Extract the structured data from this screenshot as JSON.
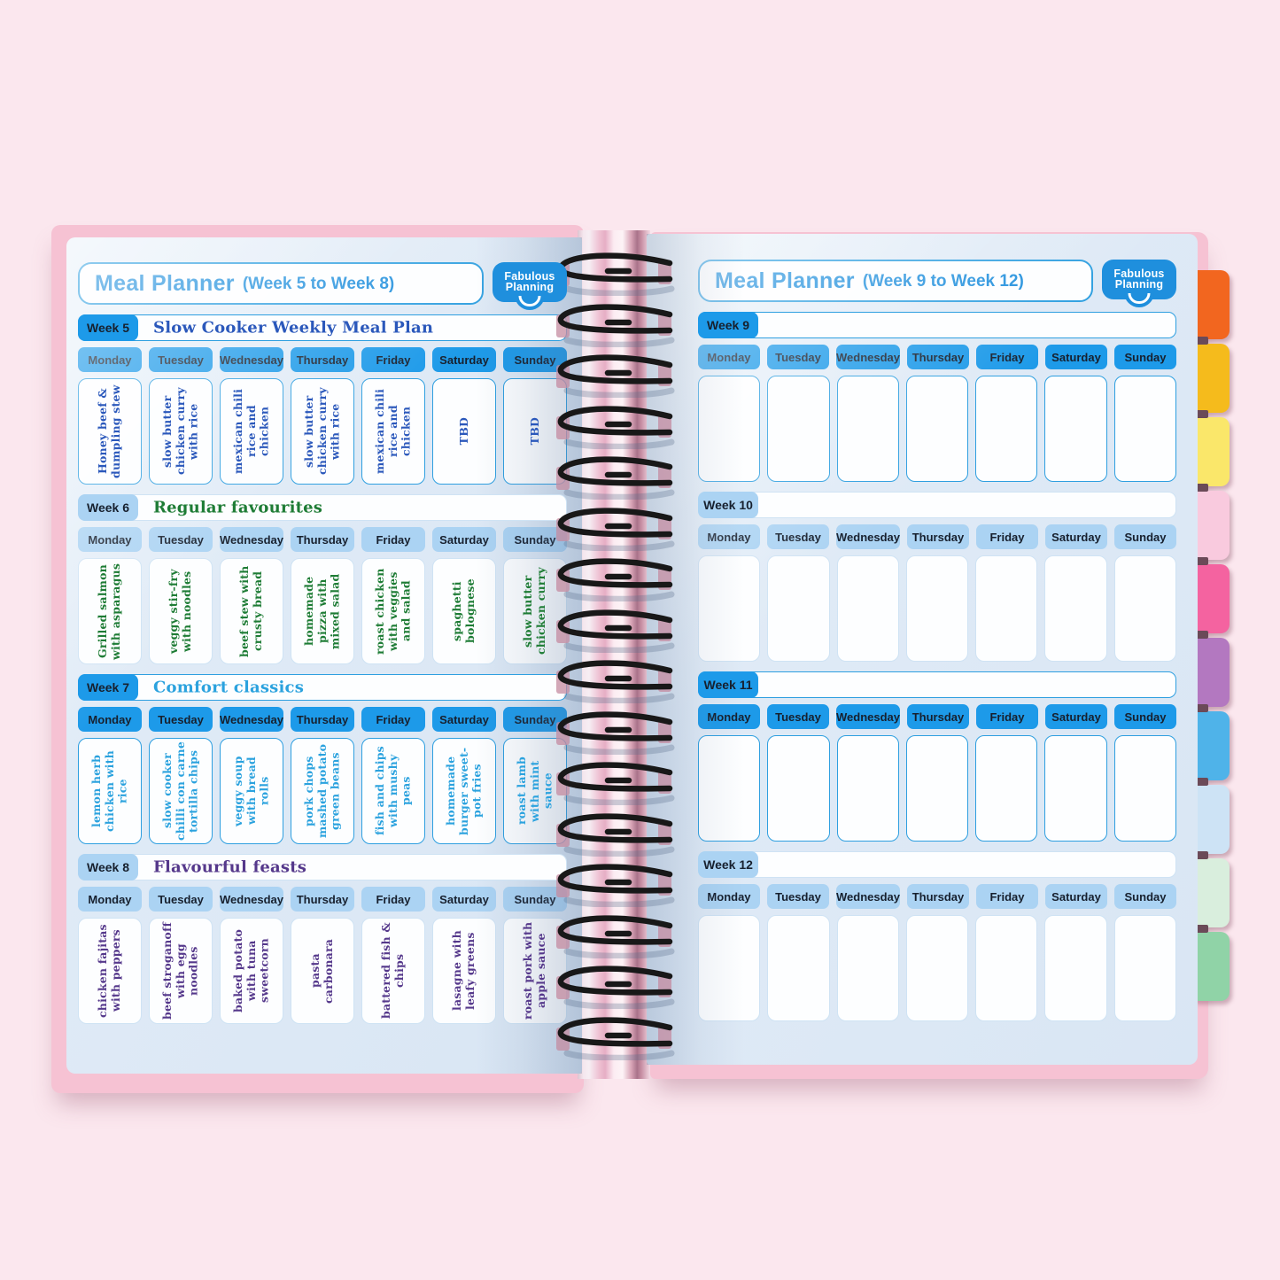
{
  "days": [
    "Monday",
    "Tuesday",
    "Wednesday",
    "Thursday",
    "Friday",
    "Saturday",
    "Sunday"
  ],
  "logo": {
    "line1": "Fabulous",
    "line2": "Planning"
  },
  "notebook": {
    "left_page": {
      "header_title": "Meal Planner",
      "header_range": "(Week 5 to Week 8)",
      "weeks": [
        {
          "label": "Week 5",
          "theme": "Slow Cooker Weekly Meal Plan",
          "variant": "solid",
          "ink": "#2b58bb",
          "meals": [
            "Honey beef & dumpling stew",
            "slow butter chicken curry with rice",
            "mexican chili rice and chicken",
            "slow butter chicken curry with rice",
            "mexican chili rice and chicken",
            "TBD",
            "TBD"
          ]
        },
        {
          "label": "Week 6",
          "theme": "Regular favourites",
          "variant": "light",
          "ink": "#1e7c35",
          "meals": [
            "Grilled salmon with asparagus",
            "veggy stir-fry with noodles",
            "beef stew with crusty bread",
            "homemade pizza with mixed salad",
            "roast chicken with veggies and salad",
            "spaghetti bolognese",
            "slow butter chicken curry"
          ]
        },
        {
          "label": "Week 7",
          "theme": "Comfort classics",
          "variant": "solid",
          "ink": "#2ba2de",
          "meals": [
            "lemon herb chicken with rice",
            "slow cooker chilli con carne tortilla chips",
            "veggy soup with bread rolls",
            "pork chops mashed potato green beans",
            "fish and chips with mushy peas",
            "homemade burger sweet-pot fries",
            "roast lamb with mint sauce"
          ]
        },
        {
          "label": "Week 8",
          "theme": "Flavourful feasts",
          "variant": "light",
          "ink": "#55388b",
          "meals": [
            "chicken fajitas with peppers",
            "beef stroganoff with egg noodles",
            "baked potato with tuna sweetcorn",
            "pasta carbonara",
            "battered fish & chips",
            "lasagne with leafy greens",
            "roast pork with apple sauce"
          ]
        }
      ]
    },
    "right_page": {
      "header_title": "Meal Planner",
      "header_range": "(Week 9 to Week 12)",
      "weeks": [
        {
          "label": "Week 9",
          "theme": "",
          "variant": "solid",
          "ink": "#2b58bb",
          "meals": [
            "",
            "",
            "",
            "",
            "",
            "",
            ""
          ]
        },
        {
          "label": "Week 10",
          "theme": "",
          "variant": "light",
          "ink": "#2b58bb",
          "meals": [
            "",
            "",
            "",
            "",
            "",
            "",
            ""
          ]
        },
        {
          "label": "Week 11",
          "theme": "",
          "variant": "solid",
          "ink": "#2b58bb",
          "meals": [
            "",
            "",
            "",
            "",
            "",
            "",
            ""
          ]
        },
        {
          "label": "Week 12",
          "theme": "",
          "variant": "light",
          "ink": "#2b58bb",
          "meals": [
            "",
            "",
            "",
            "",
            "",
            "",
            ""
          ]
        }
      ]
    }
  },
  "tabs": [
    {
      "name": "orange",
      "color": "#f2661f"
    },
    {
      "name": "amber",
      "color": "#f5bb1c"
    },
    {
      "name": "yellow",
      "color": "#fae76a"
    },
    {
      "name": "pale-pink",
      "color": "#f9cade"
    },
    {
      "name": "hot-pink",
      "color": "#f463a0"
    },
    {
      "name": "purple",
      "color": "#b378c0"
    },
    {
      "name": "sky-blue",
      "color": "#4fb3e9"
    },
    {
      "name": "pale-blue",
      "color": "#cde3f5"
    },
    {
      "name": "mint",
      "color": "#d9eedd"
    },
    {
      "name": "green",
      "color": "#90d3a7"
    }
  ],
  "colors": {
    "background_pink": "#fbe7ee",
    "cover_pink": "#f6c2d3",
    "page_blue": "#dde9f6",
    "header_blue": "#1f8fdd",
    "day_header_solid": "#1d9ae9",
    "day_header_light": "#abd3f3",
    "header_text_dark": "#17202e",
    "cell_border_solid": "#2e9fe0",
    "cell_border_light": "#cfe3f4",
    "wire_black": "#181818"
  }
}
